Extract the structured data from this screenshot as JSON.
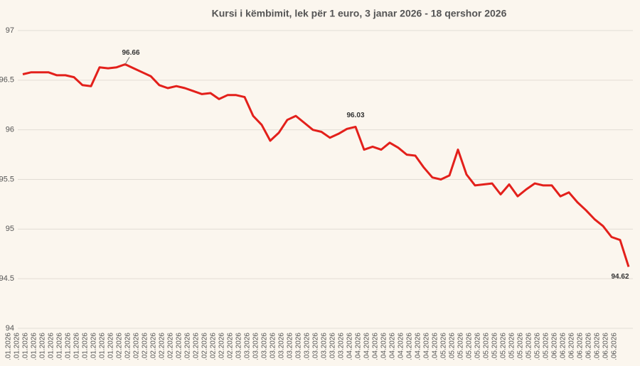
{
  "chart_data": {
    "type": "line",
    "title": "Kursi i këmbimit, lek për 1 euro, 3 janar 2026 - 18 qershor 2026",
    "categories": [
      ".01.2026",
      ".01.2026",
      ".01.2026",
      ".01.2026",
      ".01.2026",
      ".01.2026",
      ".01.2026",
      ".01.2026",
      ".01.2026",
      ".01.2026",
      ".01.2026",
      ".01.2026",
      ".01.2026",
      ".02.2026",
      ".02.2026",
      ".02.2026",
      ".02.2026",
      ".02.2026",
      ".02.2026",
      ".02.2026",
      ".02.2026",
      ".02.2026",
      ".02.2026",
      ".02.2026",
      ".02.2026",
      ".02.2026",
      ".02.2026",
      ".03.2026",
      ".03.2026",
      ".03.2026",
      ".03.2026",
      ".03.2026",
      ".03.2026",
      ".03.2026",
      ".03.2026",
      ".03.2026",
      ".03.2026",
      ".03.2026",
      ".03.2026",
      ".03.2026",
      ".04.2026",
      ".04.2026",
      ".04.2026",
      ".04.2026",
      ".04.2026",
      ".04.2026",
      ".04.2026",
      ".04.2026",
      ".04.2026",
      ".04.2026",
      ".04.2026",
      ".05.2026",
      ".05.2026",
      ".05.2026",
      ".05.2026",
      ".05.2026",
      ".05.2026",
      ".05.2026",
      ".05.2026",
      ".05.2026",
      ".05.2026",
      ".05.2026",
      ".05.2026",
      ".05.2026",
      ".06.2026",
      ".06.2026",
      ".06.2026",
      ".06.2026",
      ".06.2026",
      ".06.2026",
      ".06.2026",
      ".06.2026"
    ],
    "values": [
      96.56,
      96.58,
      96.58,
      96.58,
      96.55,
      96.55,
      96.53,
      96.45,
      96.44,
      96.63,
      96.62,
      96.63,
      96.66,
      96.62,
      96.58,
      96.54,
      96.45,
      96.42,
      96.44,
      96.42,
      96.39,
      96.36,
      96.37,
      96.31,
      96.35,
      96.35,
      96.33,
      96.14,
      96.05,
      95.89,
      95.97,
      96.1,
      96.14,
      96.07,
      96.0,
      95.98,
      95.92,
      95.96,
      96.01,
      96.03,
      95.8,
      95.83,
      95.8,
      95.87,
      95.82,
      95.75,
      95.74,
      95.62,
      95.52,
      95.5,
      95.54,
      95.8,
      95.55,
      95.44,
      95.45,
      95.46,
      95.35,
      95.45,
      95.33,
      95.4,
      95.46,
      95.44,
      95.44,
      95.33,
      95.37,
      95.27,
      95.19,
      95.1,
      95.03,
      94.92,
      94.89,
      94.62
    ],
    "labeled_points": [
      12,
      39,
      71
    ],
    "color": "#e3201b",
    "ylim": [
      94,
      97
    ],
    "yticks": [
      94,
      94.5,
      95,
      95.5,
      96,
      96.5,
      97
    ],
    "grid": true
  }
}
